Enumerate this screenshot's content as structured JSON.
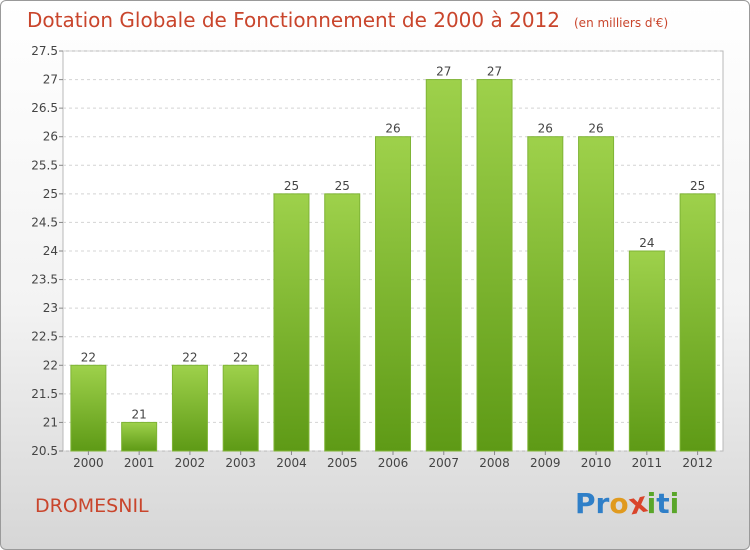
{
  "header": {
    "title": "Dotation Globale de Fonctionnement de 2000 à 2012",
    "subtitle": "(en milliers d'€)"
  },
  "footer": {
    "commune": "DROMESNIL",
    "logo_letters": [
      {
        "ch": "P",
        "color": "#2f7fc8"
      },
      {
        "ch": "r",
        "color": "#2f7fc8"
      },
      {
        "ch": "o",
        "color": "#e09a1e"
      },
      {
        "ch": "x",
        "color": "#d9442a"
      },
      {
        "ch": "i",
        "color": "#5aa62a"
      },
      {
        "ch": "t",
        "color": "#2f7fc8"
      },
      {
        "ch": "i",
        "color": "#5aa62a"
      }
    ]
  },
  "chart_data": {
    "type": "bar",
    "title": "Dotation Globale de Fonctionnement de 2000 à 2012",
    "subtitle": "(en milliers d'€)",
    "xlabel": "",
    "ylabel": "",
    "categories": [
      "2000",
      "2001",
      "2002",
      "2003",
      "2004",
      "2005",
      "2006",
      "2007",
      "2008",
      "2009",
      "2010",
      "2011",
      "2012"
    ],
    "values": [
      22,
      21,
      22,
      22,
      25,
      25,
      26,
      27,
      27,
      26,
      26,
      24,
      25
    ],
    "data_labels": [
      "22",
      "21",
      "22",
      "22",
      "25",
      "25",
      "26",
      "27",
      "27",
      "26",
      "26",
      "24",
      "25"
    ],
    "ylim": [
      20.5,
      27.5
    ],
    "yticks": [
      20.5,
      21,
      21.5,
      22,
      22.5,
      23,
      23.5,
      24,
      24.5,
      25,
      25.5,
      26,
      26.5,
      27,
      27.5
    ],
    "ytick_labels": [
      "20.5",
      "21",
      "21.5",
      "22",
      "22.5",
      "23",
      "23.5",
      "24",
      "24.5",
      "25",
      "25.5",
      "26",
      "26.5",
      "27",
      "27.5"
    ],
    "grid": true,
    "bar_color": "#8cc43c",
    "bar_color_dark": "#5e9a16"
  }
}
